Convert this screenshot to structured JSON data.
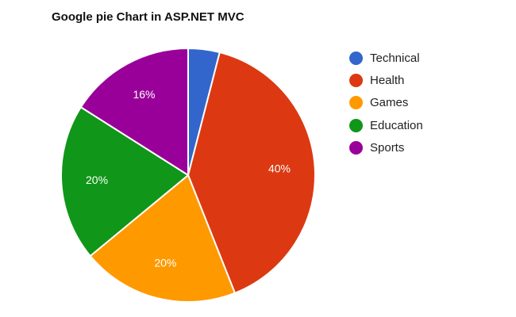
{
  "chart_data": {
    "type": "pie",
    "title": "Google pie Chart in ASP.NET MVC",
    "legend_position": "right",
    "slices": [
      {
        "label": "Technical",
        "value": 4,
        "color": "#3366cc",
        "data_label": ""
      },
      {
        "label": "Health",
        "value": 40,
        "color": "#dc3912",
        "data_label": "40%"
      },
      {
        "label": "Games",
        "value": 20,
        "color": "#ff9900",
        "data_label": "20%"
      },
      {
        "label": "Education",
        "value": 20,
        "color": "#109618",
        "data_label": "20%"
      },
      {
        "label": "Sports",
        "value": 16,
        "color": "#990099",
        "data_label": "16%"
      }
    ]
  }
}
